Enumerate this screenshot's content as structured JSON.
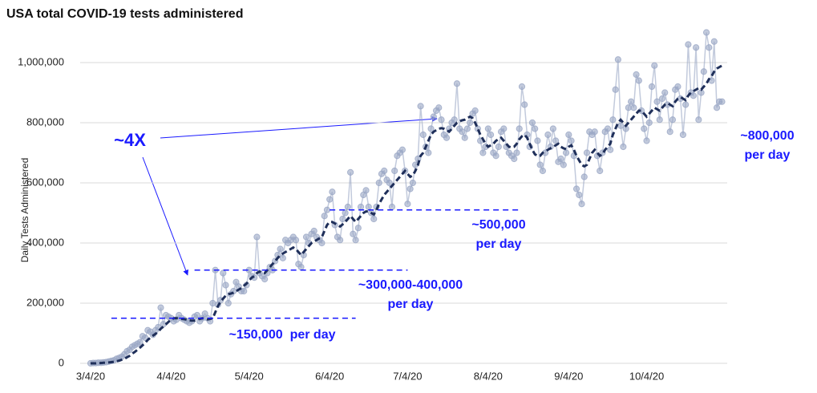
{
  "chart_data": {
    "type": "line",
    "title": "USA total COVID-19 tests administered",
    "y_label": "Daily Tests Administered",
    "x": [
      "3/4/20",
      "3/5/20",
      "3/6/20",
      "3/7/20",
      "3/8/20",
      "3/9/20",
      "3/10/20",
      "3/11/20",
      "3/12/20",
      "3/13/20",
      "3/14/20",
      "3/15/20",
      "3/16/20",
      "3/17/20",
      "3/18/20",
      "3/19/20",
      "3/20/20",
      "3/21/20",
      "3/22/20",
      "3/23/20",
      "3/24/20",
      "3/25/20",
      "3/26/20",
      "3/27/20",
      "3/28/20",
      "3/29/20",
      "3/30/20",
      "3/31/20",
      "4/1/20",
      "4/2/20",
      "4/3/20",
      "4/4/20",
      "4/5/20",
      "4/6/20",
      "4/7/20",
      "4/8/20",
      "4/9/20",
      "4/10/20",
      "4/11/20",
      "4/12/20",
      "4/13/20",
      "4/14/20",
      "4/15/20",
      "4/16/20",
      "4/17/20",
      "4/18/20",
      "4/19/20",
      "4/20/20",
      "4/21/20",
      "4/22/20",
      "4/23/20",
      "4/24/20",
      "4/25/20",
      "4/26/20",
      "4/27/20",
      "4/28/20",
      "4/29/20",
      "4/30/20",
      "5/1/20",
      "5/2/20",
      "5/3/20",
      "5/4/20",
      "5/5/20",
      "5/6/20",
      "5/7/20",
      "5/8/20",
      "5/9/20",
      "5/10/20",
      "5/11/20",
      "5/12/20",
      "5/13/20",
      "5/14/20",
      "5/15/20",
      "5/16/20",
      "5/17/20",
      "5/18/20",
      "5/19/20",
      "5/20/20",
      "5/21/20",
      "5/22/20",
      "5/23/20",
      "5/24/20",
      "5/25/20",
      "5/26/20",
      "5/27/20",
      "5/28/20",
      "5/29/20",
      "5/30/20",
      "5/31/20",
      "6/1/20",
      "6/2/20",
      "6/3/20",
      "6/4/20",
      "6/5/20",
      "6/6/20",
      "6/7/20",
      "6/8/20",
      "6/9/20",
      "6/10/20",
      "6/11/20",
      "6/12/20",
      "6/13/20",
      "6/14/20",
      "6/15/20",
      "6/16/20",
      "6/17/20",
      "6/18/20",
      "6/19/20",
      "6/20/20",
      "6/21/20",
      "6/22/20",
      "6/23/20",
      "6/24/20",
      "6/25/20",
      "6/26/20",
      "6/27/20",
      "6/28/20",
      "6/29/20",
      "6/30/20",
      "7/1/20",
      "7/2/20",
      "7/3/20",
      "7/4/20",
      "7/5/20",
      "7/6/20",
      "7/7/20",
      "7/8/20",
      "7/9/20",
      "7/10/20",
      "7/11/20",
      "7/12/20",
      "7/13/20",
      "7/14/20",
      "7/15/20",
      "7/16/20",
      "7/17/20",
      "7/18/20",
      "7/19/20",
      "7/20/20",
      "7/21/20",
      "7/22/20",
      "7/23/20",
      "7/24/20",
      "7/25/20",
      "7/26/20",
      "7/27/20",
      "7/28/20",
      "7/29/20",
      "7/30/20",
      "7/31/20",
      "8/1/20",
      "8/2/20",
      "8/3/20",
      "8/4/20",
      "8/5/20",
      "8/6/20",
      "8/7/20",
      "8/8/20",
      "8/9/20",
      "8/10/20",
      "8/11/20",
      "8/12/20",
      "8/13/20",
      "8/14/20",
      "8/15/20",
      "8/16/20",
      "8/17/20",
      "8/18/20",
      "8/19/20",
      "8/20/20",
      "8/21/20",
      "8/22/20",
      "8/23/20",
      "8/24/20",
      "8/25/20",
      "8/26/20",
      "8/27/20",
      "8/28/20",
      "8/29/20",
      "8/30/20",
      "8/31/20",
      "9/1/20",
      "9/2/20",
      "9/3/20",
      "9/4/20",
      "9/5/20",
      "9/6/20",
      "9/7/20",
      "9/8/20",
      "9/9/20",
      "9/10/20",
      "9/11/20",
      "9/12/20",
      "9/13/20",
      "9/14/20",
      "9/15/20",
      "9/16/20",
      "9/17/20",
      "9/18/20",
      "9/19/20",
      "9/20/20",
      "9/21/20",
      "9/22/20",
      "9/23/20",
      "9/24/20",
      "9/25/20",
      "9/26/20",
      "9/27/20",
      "9/28/20",
      "9/29/20",
      "9/30/20",
      "10/1/20",
      "10/2/20",
      "10/3/20",
      "10/4/20",
      "10/5/20",
      "10/6/20",
      "10/7/20",
      "10/8/20",
      "10/9/20",
      "10/10/20",
      "10/11/20",
      "10/12/20",
      "10/13/20",
      "10/14/20",
      "10/15/20",
      "10/16/20",
      "10/17/20",
      "10/18/20",
      "10/19/20",
      "10/20/20",
      "10/21/20",
      "10/22/20",
      "10/23/20",
      "10/24/20",
      "10/25/20",
      "10/26/20",
      "10/27/20",
      "10/28/20",
      "10/29/20",
      "10/30/20",
      "10/31/20",
      "11/1/20",
      "11/2/20"
    ],
    "series": [
      {
        "color": "#9aa6c4",
        "style": "dots",
        "values": [
          0,
          1000,
          1000,
          2000,
          2000,
          3000,
          4000,
          6000,
          8000,
          10000,
          15000,
          18000,
          22000,
          30000,
          40000,
          45000,
          55000,
          60000,
          65000,
          70000,
          90000,
          85000,
          110000,
          105000,
          95000,
          110000,
          120000,
          185000,
          130000,
          160000,
          155000,
          150000,
          140000,
          145000,
          160000,
          150000,
          145000,
          140000,
          135000,
          140000,
          155000,
          160000,
          140000,
          150000,
          165000,
          150000,
          140000,
          200000,
          310000,
          195000,
          210000,
          300000,
          260000,
          200000,
          230000,
          240000,
          270000,
          255000,
          240000,
          240000,
          260000,
          310000,
          290000,
          285000,
          420000,
          300000,
          290000,
          280000,
          300000,
          320000,
          310000,
          340000,
          360000,
          380000,
          350000,
          410000,
          400000,
          410000,
          420000,
          410000,
          330000,
          320000,
          360000,
          420000,
          400000,
          430000,
          440000,
          420000,
          410000,
          400000,
          490000,
          510000,
          545000,
          570000,
          460000,
          420000,
          410000,
          480000,
          500000,
          520000,
          635000,
          430000,
          410000,
          450000,
          520000,
          560000,
          575000,
          520000,
          500000,
          480000,
          520000,
          600000,
          630000,
          640000,
          610000,
          600000,
          520000,
          640000,
          690000,
          700000,
          710000,
          640000,
          530000,
          580000,
          600000,
          660000,
          680000,
          855000,
          760000,
          720000,
          700000,
          780000,
          820000,
          840000,
          850000,
          810000,
          760000,
          750000,
          780000,
          800000,
          810000,
          930000,
          780000,
          770000,
          750000,
          780000,
          800000,
          830000,
          840000,
          780000,
          740000,
          700000,
          720000,
          780000,
          760000,
          700000,
          690000,
          720000,
          770000,
          780000,
          720000,
          700000,
          690000,
          680000,
          700000,
          780000,
          920000,
          860000,
          760000,
          720000,
          800000,
          780000,
          740000,
          660000,
          640000,
          700000,
          760000,
          720000,
          780000,
          740000,
          670000,
          680000,
          660000,
          700000,
          760000,
          740000,
          690000,
          580000,
          560000,
          530000,
          620000,
          700000,
          770000,
          760000,
          770000,
          690000,
          640000,
          700000,
          770000,
          780000,
          710000,
          810000,
          910000,
          1010000,
          790000,
          720000,
          780000,
          850000,
          870000,
          850000,
          960000,
          940000,
          840000,
          780000,
          740000,
          800000,
          920000,
          990000,
          870000,
          810000,
          880000,
          900000,
          860000,
          770000,
          810000,
          910000,
          920000,
          880000,
          760000,
          860000,
          1060000,
          900000,
          890000,
          1050000,
          810000,
          900000,
          970000,
          1100000,
          1050000,
          940000,
          1070000,
          850000,
          870000,
          870000
        ]
      },
      {
        "color": "#1f2f5a",
        "style": "dashed",
        "values": [
          0,
          0,
          0,
          1000,
          1000,
          2000,
          2000,
          3000,
          4000,
          5000,
          7000,
          9000,
          12000,
          15000,
          20000,
          25000,
          32000,
          38000,
          45000,
          52000,
          60000,
          68000,
          78000,
          85000,
          92000,
          98000,
          105000,
          115000,
          122000,
          130000,
          138000,
          145000,
          150000,
          150000,
          150000,
          148000,
          147000,
          145000,
          143000,
          142000,
          142000,
          145000,
          148000,
          150000,
          148000,
          146000,
          148000,
          150000,
          170000,
          190000,
          205000,
          215000,
          225000,
          230000,
          232000,
          235000,
          240000,
          245000,
          250000,
          258000,
          265000,
          275000,
          285000,
          290000,
          300000,
          305000,
          300000,
          300000,
          310000,
          320000,
          330000,
          340000,
          350000,
          360000,
          365000,
          370000,
          375000,
          380000,
          385000,
          380000,
          370000,
          360000,
          370000,
          380000,
          390000,
          400000,
          405000,
          410000,
          415000,
          420000,
          440000,
          460000,
          470000,
          470000,
          465000,
          460000,
          455000,
          462000,
          470000,
          480000,
          490000,
          480000,
          470000,
          480000,
          490000,
          500000,
          505000,
          505000,
          500000,
          495000,
          510000,
          530000,
          545000,
          560000,
          570000,
          580000,
          590000,
          600000,
          610000,
          620000,
          630000,
          640000,
          630000,
          620000,
          625000,
          640000,
          660000,
          690000,
          700000,
          720000,
          740000,
          760000,
          770000,
          775000,
          780000,
          782000,
          780000,
          775000,
          770000,
          780000,
          790000,
          800000,
          805000,
          808000,
          810000,
          815000,
          820000,
          815000,
          800000,
          780000,
          760000,
          745000,
          730000,
          720000,
          725000,
          730000,
          740000,
          745000,
          750000,
          740000,
          730000,
          720000,
          718000,
          720000,
          730000,
          745000,
          755000,
          760000,
          750000,
          730000,
          710000,
          695000,
          690000,
          690000,
          700000,
          705000,
          710000,
          715000,
          720000,
          725000,
          730000,
          720000,
          715000,
          712000,
          720000,
          725000,
          710000,
          690000,
          675000,
          660000,
          655000,
          660000,
          680000,
          700000,
          710000,
          700000,
          690000,
          695000,
          710000,
          720000,
          730000,
          760000,
          780000,
          800000,
          810000,
          800000,
          790000,
          800000,
          810000,
          820000,
          830000,
          840000,
          840000,
          830000,
          820000,
          830000,
          840000,
          850000,
          845000,
          840000,
          850000,
          860000,
          865000,
          860000,
          855000,
          870000,
          880000,
          885000,
          880000,
          875000,
          890000,
          900000,
          905000,
          910000,
          915000,
          910000,
          920000,
          930000,
          945000,
          955000,
          970000,
          980000,
          985000,
          990000
        ]
      }
    ],
    "xlim": [
      "3/4/20",
      "11/4/20"
    ],
    "xticks": [
      "3/4/20",
      "4/4/20",
      "5/4/20",
      "6/4/20",
      "7/4/20",
      "8/4/20",
      "9/4/20",
      "10/4/20"
    ],
    "ylim": [
      0,
      1100000
    ],
    "yticks": [
      0,
      {
        "value": 200000,
        "label": "200,000"
      },
      {
        "value": 400000,
        "label": "400,000"
      },
      {
        "value": 600000,
        "label": "600,000"
      },
      {
        "value": 800000,
        "label": "800,000"
      },
      {
        "value": 1000000,
        "label": "1,000,000"
      }
    ],
    "grid": true,
    "guides": [
      {
        "y": 150000,
        "x": [
          "3/12/20",
          "6/14/20"
        ]
      },
      {
        "y": 310000,
        "x": [
          "4/13/20",
          "7/4/20"
        ]
      },
      {
        "y": 510000,
        "x": [
          "6/4/20",
          "8/16/20"
        ]
      }
    ],
    "annotations": [
      {
        "lines": [
          "~4X"
        ]
      },
      {
        "lines": [
          "~150,000  per day"
        ]
      },
      {
        "lines": [
          "~300,000-400,000",
          "per day"
        ]
      },
      {
        "lines": [
          "~500,000",
          "per day"
        ]
      },
      {
        "lines": [
          "~800,000",
          "per day"
        ]
      }
    ]
  }
}
